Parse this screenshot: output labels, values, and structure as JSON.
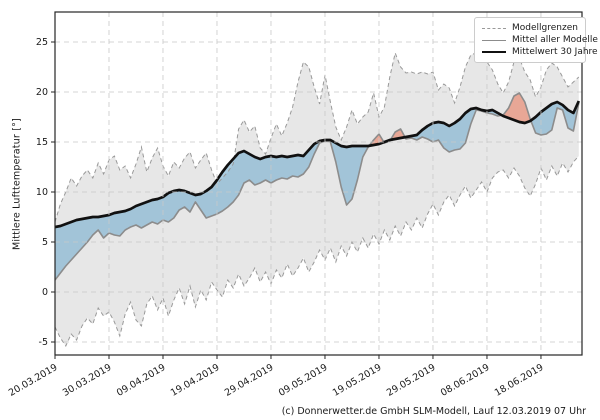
{
  "figure": {
    "footer_credit": "(c) Donnerwetter.de GmbH SLM-Modell, Lauf 12.03.2019 07 Uhr"
  },
  "legend": {
    "items": [
      {
        "id": "model-bounds",
        "label": "Modellgrenzen",
        "style": "dashed-gray"
      },
      {
        "id": "model-mean",
        "label": "Mittel aller Modelle",
        "style": "solid-gray"
      },
      {
        "id": "mean-30y",
        "label": "Mittelwert 30 Jahre",
        "style": "thick-black"
      }
    ]
  },
  "chart_data": {
    "type": "line",
    "title": "",
    "xlabel": "",
    "ylabel": "Mittlere Lufttemperatur [°]",
    "x_unit": "days since 20.03.2019 (daily values)",
    "x_range": [
      0,
      97.6
    ],
    "y_range": [
      -6.3,
      28
    ],
    "grid": true,
    "legend_position": "upper right",
    "x_ticks": [
      {
        "day": 0,
        "label": "20.03.2019"
      },
      {
        "day": 10,
        "label": "30.03.2019"
      },
      {
        "day": 20,
        "label": "09.04.2019"
      },
      {
        "day": 30,
        "label": "19.04.2019"
      },
      {
        "day": 40,
        "label": "29.04.2019"
      },
      {
        "day": 50,
        "label": "09.05.2019"
      },
      {
        "day": 60,
        "label": "19.05.2019"
      },
      {
        "day": 70,
        "label": "29.05.2019"
      },
      {
        "day": 80,
        "label": "08.06.2019"
      },
      {
        "day": 90,
        "label": "18.06.2019"
      }
    ],
    "y_ticks": [
      -5,
      0,
      5,
      10,
      15,
      20,
      25
    ],
    "series": [
      {
        "name": "Modellgrenzen (obere Grenze)",
        "role": "upper_bound",
        "values": [
          7.0,
          8.8,
          10.0,
          11.4,
          10.6,
          11.6,
          12.2,
          11.4,
          12.9,
          11.8,
          13.2,
          13.6,
          12.2,
          12.6,
          11.4,
          12.8,
          14.5,
          12.0,
          13.4,
          14.4,
          12.6,
          11.6,
          13.0,
          12.4,
          13.4,
          14.0,
          12.4,
          13.2,
          13.9,
          12.2,
          10.8,
          11.4,
          12.0,
          12.8,
          16.3,
          17.2,
          16.0,
          16.6,
          14.4,
          13.8,
          15.4,
          16.8,
          15.6,
          16.9,
          18.5,
          21.0,
          23.0,
          22.5,
          20.5,
          18.8,
          21.7,
          19.0,
          16.5,
          15.2,
          16.5,
          18.2,
          16.8,
          17.5,
          18.0,
          19.9,
          17.5,
          18.5,
          21.5,
          23.9,
          22.5,
          21.9,
          22.0,
          21.8,
          22.0,
          21.8,
          22.0,
          20.2,
          20.8,
          20.4,
          18.9,
          20.5,
          22.5,
          23.7,
          23.9,
          24.0,
          23.0,
          22.2,
          20.8,
          19.9,
          21.0,
          23.0,
          23.4,
          22.0,
          21.2,
          19.5,
          20.5,
          22.2,
          22.9,
          22.5,
          21.5,
          20.5,
          21.0,
          21.5
        ]
      },
      {
        "name": "Modellgrenzen (untere Grenze)",
        "role": "lower_bound",
        "values": [
          -3.5,
          -4.6,
          -5.4,
          -4.2,
          -4.8,
          -3.4,
          -2.6,
          -3.2,
          -1.6,
          -2.4,
          -2.0,
          -3.0,
          -4.4,
          -2.2,
          -1.0,
          -2.8,
          -3.4,
          -1.2,
          -0.4,
          -1.8,
          -0.6,
          -2.4,
          -0.8,
          0.4,
          -1.2,
          0.6,
          -1.5,
          0.2,
          -0.8,
          1.0,
          0.2,
          -0.5,
          1.2,
          0.4,
          1.8,
          0.6,
          1.4,
          2.4,
          1.0,
          2.0,
          0.8,
          2.2,
          1.4,
          2.8,
          1.6,
          2.4,
          3.4,
          2.0,
          3.0,
          4.2,
          3.2,
          4.4,
          3.0,
          4.6,
          3.6,
          5.0,
          4.0,
          5.4,
          4.4,
          5.8,
          4.8,
          6.2,
          5.2,
          6.6,
          5.6,
          7.0,
          6.2,
          7.4,
          6.4,
          7.8,
          8.8,
          7.7,
          9.0,
          9.7,
          8.6,
          9.7,
          10.6,
          9.4,
          10.2,
          11.0,
          10.0,
          11.4,
          12.0,
          12.2,
          11.4,
          12.4,
          11.6,
          10.4,
          9.6,
          10.8,
          12.4,
          11.2,
          12.6,
          11.6,
          12.9,
          12.0,
          13.0,
          13.6
        ]
      },
      {
        "name": "Mittel aller Modelle",
        "role": "model_mean",
        "values": [
          1.2,
          1.9,
          2.6,
          3.2,
          3.8,
          4.4,
          5.0,
          5.7,
          6.2,
          5.4,
          5.9,
          5.7,
          5.6,
          6.2,
          6.5,
          6.7,
          6.4,
          6.7,
          7.0,
          6.8,
          7.2,
          7.0,
          7.4,
          8.2,
          8.5,
          8.0,
          9.0,
          8.2,
          7.4,
          7.6,
          7.8,
          8.1,
          8.5,
          9.0,
          9.7,
          10.9,
          11.2,
          10.7,
          10.9,
          11.2,
          10.9,
          11.2,
          11.4,
          11.3,
          11.6,
          11.5,
          11.8,
          12.5,
          13.8,
          14.9,
          15.1,
          15.0,
          13.0,
          10.5,
          8.7,
          9.3,
          11.2,
          13.5,
          14.5,
          15.2,
          15.8,
          14.9,
          15.1,
          16.0,
          16.3,
          15.3,
          15.4,
          15.2,
          15.5,
          15.3,
          15.0,
          15.2,
          14.4,
          14.0,
          14.2,
          14.3,
          14.9,
          16.8,
          18.2,
          18.1,
          17.9,
          17.8,
          17.6,
          17.7,
          18.4,
          19.6,
          19.9,
          19.0,
          17.3,
          15.9,
          15.7,
          15.8,
          16.2,
          18.4,
          18.2,
          16.4,
          16.1,
          18.9
        ]
      },
      {
        "name": "Mittelwert 30 Jahre",
        "role": "mean_30y",
        "values": [
          6.5,
          6.6,
          6.8,
          7.0,
          7.2,
          7.3,
          7.4,
          7.5,
          7.5,
          7.6,
          7.7,
          7.9,
          8.0,
          8.1,
          8.3,
          8.6,
          8.8,
          9.0,
          9.2,
          9.3,
          9.5,
          9.9,
          10.1,
          10.2,
          10.1,
          9.9,
          9.7,
          9.8,
          10.1,
          10.5,
          11.2,
          12.0,
          12.7,
          13.3,
          13.9,
          14.1,
          13.8,
          13.5,
          13.3,
          13.5,
          13.6,
          13.5,
          13.6,
          13.5,
          13.6,
          13.7,
          13.6,
          14.2,
          14.8,
          15.1,
          15.2,
          15.2,
          14.9,
          14.6,
          14.5,
          14.6,
          14.6,
          14.6,
          14.6,
          14.7,
          14.8,
          15.0,
          15.2,
          15.3,
          15.4,
          15.5,
          15.6,
          15.7,
          16.2,
          16.6,
          16.9,
          17.0,
          16.9,
          16.6,
          16.9,
          17.3,
          17.9,
          18.3,
          18.4,
          18.2,
          18.1,
          18.2,
          17.9,
          17.6,
          17.4,
          17.2,
          17.0,
          16.9,
          17.1,
          17.5,
          18.0,
          18.4,
          18.8,
          19.0,
          18.7,
          18.2,
          17.9,
          19.1
        ]
      }
    ],
    "colors": {
      "band_fill": "rgba(70,70,70,0.13)",
      "bound_line": "#999999",
      "model_mean_line": "#8c8c8c",
      "mean_30y_line": "#111111",
      "below_mean_fill": "rgba(116,174,207,0.60)",
      "above_mean_fill": "rgba(233,125,97,0.60)",
      "grid_line": "#c8c8c8",
      "spine": "#262626",
      "tick_text": "#1a1a1a"
    }
  }
}
